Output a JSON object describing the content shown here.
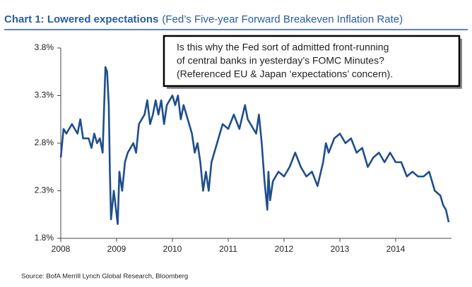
{
  "chart_data": {
    "type": "line",
    "title": "Chart 1: Lowered expectations",
    "subtitle": "(Fed’s Five-year Forward Breakeven Inflation Rate)",
    "annotation": [
      "Is this why the Fed sort of admitted front-running",
      "of central banks in yesterday’s FOMC Minutes?",
      "(Referenced EU & Japan ‘expectations’ concern)."
    ],
    "source": "Source: BofA Merrill Lynch Global Research, Bloomberg",
    "xlim": [
      2008,
      2015
    ],
    "xticks": [
      2008,
      2009,
      2010,
      2011,
      2012,
      2013,
      2014
    ],
    "ylim": [
      1.8,
      3.8
    ],
    "yticks": [
      {
        "value": 1.8,
        "label": "1.8%"
      },
      {
        "value": 2.3,
        "label": "2.3%"
      },
      {
        "value": 2.8,
        "label": "2.8%"
      },
      {
        "value": 3.3,
        "label": "3.3%"
      },
      {
        "value": 3.8,
        "label": "3.8%"
      }
    ],
    "grid": false,
    "series": [
      {
        "color": "#1f4e8c",
        "x": [
          2008.0,
          2008.05,
          2008.1,
          2008.2,
          2008.3,
          2008.35,
          2008.4,
          2008.5,
          2008.55,
          2008.6,
          2008.65,
          2008.7,
          2008.75,
          2008.8,
          2008.83,
          2008.86,
          2008.88,
          2008.9,
          2008.95,
          2009.0,
          2009.02,
          2009.05,
          2009.1,
          2009.15,
          2009.2,
          2009.3,
          2009.35,
          2009.4,
          2009.5,
          2009.55,
          2009.6,
          2009.65,
          2009.7,
          2009.75,
          2009.8,
          2009.85,
          2009.9,
          2010.0,
          2010.05,
          2010.1,
          2010.15,
          2010.2,
          2010.3,
          2010.35,
          2010.4,
          2010.45,
          2010.5,
          2010.55,
          2010.6,
          2010.65,
          2010.7,
          2010.8,
          2010.9,
          2011.0,
          2011.1,
          2011.2,
          2011.3,
          2011.35,
          2011.4,
          2011.5,
          2011.55,
          2011.6,
          2011.65,
          2011.7,
          2011.72,
          2011.75,
          2011.8,
          2011.9,
          2012.0,
          2012.1,
          2012.2,
          2012.3,
          2012.4,
          2012.5,
          2012.6,
          2012.7,
          2012.75,
          2012.8,
          2012.9,
          2013.0,
          2013.1,
          2013.2,
          2013.3,
          2013.4,
          2013.5,
          2013.6,
          2013.7,
          2013.8,
          2013.9,
          2014.0,
          2014.1,
          2014.2,
          2014.3,
          2014.4,
          2014.5,
          2014.6,
          2014.65,
          2014.7,
          2014.8,
          2014.85,
          2014.9,
          2014.95
        ],
        "values": [
          2.65,
          2.95,
          2.9,
          3.0,
          2.9,
          3.05,
          2.85,
          2.85,
          2.75,
          2.9,
          2.8,
          2.85,
          2.7,
          3.6,
          3.55,
          3.2,
          2.5,
          2.0,
          2.3,
          2.05,
          1.95,
          2.5,
          2.3,
          2.6,
          2.7,
          2.8,
          2.7,
          3.0,
          3.1,
          3.25,
          3.0,
          3.1,
          3.25,
          3.1,
          3.25,
          3.0,
          3.2,
          3.3,
          3.2,
          3.3,
          3.05,
          3.2,
          3.0,
          2.9,
          2.7,
          2.8,
          2.6,
          2.3,
          2.5,
          2.3,
          2.6,
          2.8,
          3.0,
          2.95,
          3.1,
          2.95,
          3.2,
          3.05,
          3.0,
          2.9,
          3.1,
          2.8,
          2.4,
          2.1,
          2.5,
          2.2,
          2.4,
          2.5,
          2.45,
          2.55,
          2.7,
          2.55,
          2.45,
          2.5,
          2.35,
          2.6,
          2.8,
          2.7,
          2.85,
          2.9,
          2.8,
          2.85,
          2.7,
          2.75,
          2.55,
          2.65,
          2.7,
          2.6,
          2.7,
          2.6,
          2.6,
          2.45,
          2.5,
          2.45,
          2.45,
          2.5,
          2.4,
          2.3,
          2.25,
          2.15,
          2.1,
          1.97
        ]
      }
    ]
  }
}
